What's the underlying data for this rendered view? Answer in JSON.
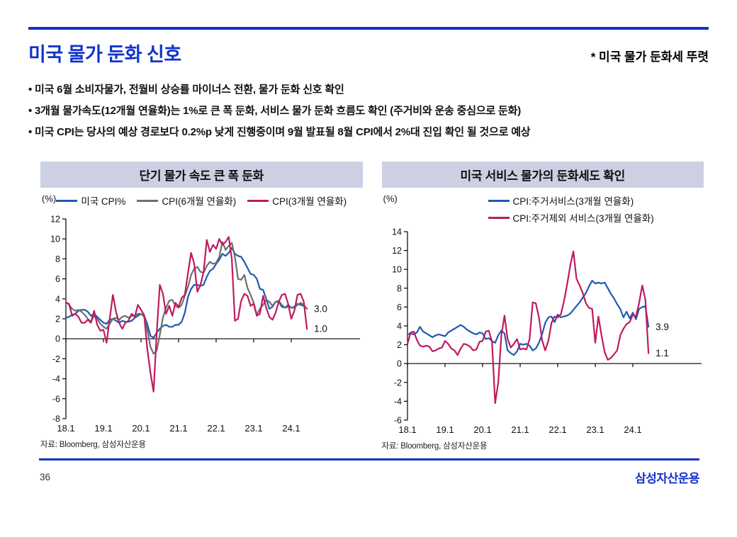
{
  "page": {
    "title": "미국 물가 둔화 신호",
    "note": "* 미국 물가 둔화세 뚜렷",
    "bullets": [
      "• 미국 6월 소비자물가, 전월비 상승률 마이너스 전환, 물가 둔화 신호 확인",
      "• 3개월 물가속도(12개월 연율화)는 1%로 큰 폭 둔화, 서비스 물가 둔화 흐름도 확인 (주거비와 운송 중심으로 둔화)",
      "• 미국 CPI는 당사의 예상 경로보다 0.2%p 낮게 진행중이며 9월 발표될 8월 CPI에서 2%대 진입 확인 될 것으로 예상"
    ],
    "page_number": "36",
    "logo_text": "삼성자산운용"
  },
  "colors": {
    "accent_blue": "#1133cc",
    "panel_header_bg": "#ccd0e2",
    "line_blue": "#1e5ab0",
    "line_gray": "#6e6e6e",
    "line_crimson": "#c01a5f",
    "axis_black": "#000000"
  },
  "chart_data": [
    {
      "type": "line",
      "title": "단기 물가 속도 큰 폭 둔화",
      "unit_label": "(%)",
      "legend_layout": "row",
      "x_tick_labels": [
        "18.1",
        "19.1",
        "20.1",
        "21.1",
        "22.1",
        "23.1",
        "24.1"
      ],
      "x_tick_months": [
        0,
        12,
        24,
        36,
        48,
        60,
        72
      ],
      "x_domain_months": 84,
      "x_start": "2018-01",
      "x_end": "2024-06",
      "ylim": [
        -8,
        12
      ],
      "yticks": [
        12,
        10,
        8,
        6,
        4,
        2,
        0,
        -2,
        -4,
        -6,
        -8
      ],
      "grid": false,
      "series": [
        {
          "name": "미국 CPI%",
          "color": "#1e5ab0",
          "values": [
            2.1,
            2.2,
            2.4,
            2.5,
            2.8,
            2.9,
            2.9,
            2.7,
            2.3,
            2.5,
            2.2,
            1.9,
            1.6,
            1.5,
            1.9,
            2.0,
            1.8,
            1.6,
            1.8,
            1.7,
            1.7,
            1.8,
            2.1,
            2.3,
            2.5,
            2.3,
            1.5,
            0.3,
            0.1,
            0.6,
            1.0,
            1.3,
            1.4,
            1.2,
            1.2,
            1.4,
            1.4,
            1.7,
            2.6,
            4.2,
            5.0,
            5.4,
            5.4,
            5.3,
            5.4,
            6.2,
            6.8,
            7.0,
            7.5,
            7.9,
            8.5,
            8.3,
            8.6,
            9.1,
            8.5,
            8.3,
            8.2,
            7.7,
            7.1,
            6.5,
            6.4,
            6.0,
            5.0,
            4.9,
            4.0,
            3.0,
            3.2,
            3.7,
            3.7,
            3.2,
            3.1,
            3.4,
            3.1,
            3.2,
            3.5,
            3.4,
            3.3,
            3.0
          ]
        },
        {
          "name": "CPI(6개월 연율화)",
          "color": "#6e6e6e",
          "values": [
            3.7,
            3.4,
            3.0,
            2.8,
            2.9,
            2.7,
            2.4,
            2.0,
            1.7,
            2.3,
            2.0,
            1.5,
            1.2,
            1.0,
            1.5,
            2.0,
            2.1,
            1.9,
            2.2,
            2.3,
            2.1,
            2.3,
            2.3,
            2.5,
            2.5,
            2.2,
            0.9,
            -0.8,
            -1.5,
            -1.2,
            0.4,
            2.1,
            3.1,
            3.8,
            3.9,
            3.3,
            3.1,
            3.4,
            4.3,
            5.2,
            6.4,
            7.0,
            7.2,
            6.7,
            6.6,
            7.3,
            7.7,
            7.5,
            7.6,
            8.2,
            9.7,
            8.9,
            9.3,
            9.6,
            8.2,
            6.0,
            5.9,
            6.4,
            5.1,
            4.4,
            3.6,
            2.4,
            3.0,
            3.4,
            3.9,
            3.7,
            3.3,
            3.7,
            3.8,
            3.4,
            3.1,
            3.2,
            3.1,
            3.1,
            3.4,
            3.6,
            3.4,
            3.0
          ]
        },
        {
          "name": "CPI(3개월 연율화)",
          "color": "#c01a5f",
          "values": [
            3.6,
            3.5,
            2.3,
            2.5,
            2.2,
            1.6,
            1.6,
            1.9,
            1.6,
            2.8,
            1.4,
            0.8,
            0.9,
            -0.4,
            2.0,
            4.4,
            2.7,
            1.6,
            1.0,
            1.6,
            1.8,
            2.5,
            2.2,
            3.4,
            2.9,
            2.4,
            -1.0,
            -3.4,
            -5.3,
            0.5,
            5.4,
            4.5,
            2.5,
            3.3,
            2.3,
            3.6,
            3.2,
            4.1,
            4.4,
            6.6,
            8.6,
            7.5,
            4.7,
            5.4,
            6.7,
            9.9,
            8.7,
            9.4,
            9.0,
            10.0,
            9.4,
            9.7,
            10.2,
            8.0,
            1.8,
            2.0,
            3.8,
            4.5,
            4.3,
            3.3,
            3.5,
            2.3,
            2.5,
            4.3,
            3.1,
            2.2,
            1.9,
            2.6,
            3.7,
            4.4,
            4.5,
            3.5,
            2.0,
            2.8,
            4.4,
            4.5,
            3.7,
            1.0
          ]
        }
      ],
      "end_labels": [
        {
          "text": "3.0",
          "value": 3.0
        },
        {
          "text": "1.0",
          "value": 1.0
        }
      ],
      "source": "자료: Bloomberg, 삼성자산운용"
    },
    {
      "type": "line",
      "title": "미국 서비스 물가의 둔화세도 확인",
      "unit_label": "(%)",
      "legend_layout": "column",
      "x_tick_labels": [
        "18.1",
        "19.1",
        "20.1",
        "21.1",
        "22.1",
        "23.1",
        "24.1"
      ],
      "x_tick_months": [
        0,
        12,
        24,
        36,
        48,
        60,
        72
      ],
      "x_domain_months": 84,
      "x_start": "2018-01",
      "x_end": "2024-06",
      "ylim": [
        -6,
        14
      ],
      "yticks": [
        14,
        12,
        10,
        8,
        6,
        4,
        2,
        0,
        -2,
        -4,
        -6
      ],
      "grid": false,
      "series": [
        {
          "name": "CPI:주거서비스(3개월 연율화)",
          "color": "#1e5ab0",
          "values": [
            3.1,
            3.2,
            3.1,
            3.3,
            3.9,
            3.4,
            3.2,
            3.0,
            2.8,
            3.0,
            3.1,
            3.0,
            2.9,
            3.3,
            3.5,
            3.7,
            3.9,
            4.1,
            3.9,
            3.6,
            3.4,
            3.2,
            3.1,
            3.3,
            3.2,
            2.6,
            2.7,
            2.4,
            2.2,
            3.0,
            3.5,
            3.2,
            1.4,
            1.1,
            0.9,
            1.3,
            2.1,
            2.0,
            2.1,
            1.9,
            1.4,
            1.6,
            2.2,
            3.1,
            4.3,
            4.9,
            5.0,
            4.4,
            5.2,
            4.9,
            5.0,
            5.1,
            5.3,
            5.7,
            6.1,
            6.5,
            7.0,
            7.5,
            8.2,
            8.8,
            8.5,
            8.6,
            8.5,
            8.6,
            8.0,
            7.4,
            6.9,
            6.3,
            5.8,
            4.9,
            5.5,
            4.8,
            5.4,
            4.7,
            5.8,
            6.0,
            6.1,
            3.9
          ]
        },
        {
          "name": "CPI:주거제외 서비스(3개월 연율화)",
          "color": "#c01a5f",
          "values": [
            2.1,
            3.3,
            3.4,
            2.5,
            1.9,
            1.8,
            1.9,
            1.8,
            1.3,
            1.4,
            1.6,
            1.7,
            2.4,
            2.1,
            1.6,
            1.4,
            0.9,
            1.6,
            2.1,
            2.0,
            1.8,
            1.4,
            1.5,
            2.3,
            2.4,
            3.4,
            3.5,
            2.3,
            -4.2,
            -2.0,
            3.0,
            5.1,
            2.6,
            1.7,
            2.1,
            2.6,
            1.5,
            1.6,
            1.5,
            2.6,
            6.5,
            6.4,
            4.9,
            2.5,
            1.4,
            2.4,
            4.3,
            5.0,
            4.9,
            5.2,
            6.6,
            8.4,
            10.4,
            11.9,
            9.0,
            8.3,
            7.5,
            6.4,
            5.9,
            5.8,
            2.2,
            5.0,
            3.0,
            1.2,
            0.4,
            0.6,
            1.0,
            1.4,
            3.0,
            3.7,
            4.2,
            4.4,
            5.2,
            5.0,
            6.4,
            8.3,
            6.8,
            1.1
          ]
        }
      ],
      "end_labels": [
        {
          "text": "3.9",
          "value": 3.9
        },
        {
          "text": "1.1",
          "value": 1.1
        }
      ],
      "source": "자료: Bloomberg, 삼성자산운용"
    }
  ]
}
